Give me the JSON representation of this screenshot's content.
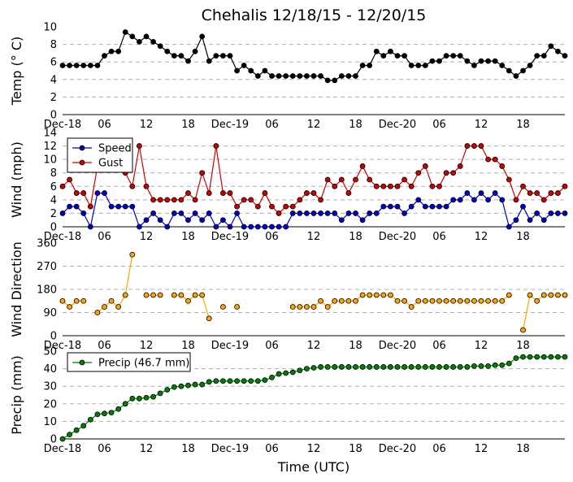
{
  "chart_data": {
    "title": "Chehalis 12/18/15 - 12/20/15",
    "xlabel": "Time (UTC)",
    "x_tick_labels": [
      "Dec-18",
      "06",
      "12",
      "18",
      "Dec-19",
      "06",
      "12",
      "18",
      "Dec-20",
      "06",
      "12",
      "18"
    ],
    "x_tick_hours": [
      0,
      6,
      12,
      18,
      24,
      30,
      36,
      42,
      48,
      54,
      60,
      66
    ],
    "x_range_hours": [
      0,
      72
    ],
    "sample_interval_hours": 1,
    "panels": [
      {
        "id": "temp",
        "type": "line",
        "ylabel": "Temp (° C)",
        "ylim": [
          0,
          10
        ],
        "yticks": [
          0,
          2,
          4,
          6,
          8,
          10
        ],
        "grid": true,
        "legend": null,
        "series": [
          {
            "name": "",
            "color": "#000000",
            "values": [
              5.6,
              5.6,
              5.6,
              5.6,
              5.6,
              5.6,
              6.7,
              7.2,
              7.2,
              9.4,
              8.9,
              8.3,
              8.9,
              8.3,
              7.8,
              7.2,
              6.7,
              6.7,
              6.1,
              7.2,
              8.9,
              6.1,
              6.7,
              6.7,
              6.7,
              5.0,
              5.6,
              5.0,
              4.4,
              5.0,
              4.4,
              4.4,
              4.4,
              4.4,
              4.4,
              4.4,
              4.4,
              4.4,
              3.9,
              3.9,
              4.4,
              4.4,
              4.4,
              5.6,
              5.6,
              7.2,
              6.7,
              7.2,
              6.7,
              6.7,
              5.6,
              5.6,
              5.6,
              6.1,
              6.1,
              6.7,
              6.7,
              6.7,
              6.1,
              5.6,
              6.1,
              6.1,
              6.1,
              5.6,
              5.0,
              4.4,
              5.0,
              5.6,
              6.7,
              6.7,
              7.8,
              7.2,
              6.7
            ]
          }
        ]
      },
      {
        "id": "wind",
        "type": "line",
        "ylabel": "Wind (mph)",
        "ylim": [
          0,
          14
        ],
        "yticks": [
          0,
          2,
          4,
          6,
          8,
          10,
          12,
          14
        ],
        "grid": true,
        "legend": "upper-left",
        "series": [
          {
            "name": "Speed",
            "color": "#0000cc",
            "values": [
              2,
              3,
              3,
              2,
              0,
              5,
              5,
              3,
              3,
              3,
              3,
              0,
              1,
              2,
              1,
              0,
              2,
              2,
              1,
              2,
              1,
              2,
              0,
              1,
              0,
              2,
              0,
              0,
              0,
              0,
              0,
              0,
              0,
              2,
              2,
              2,
              2,
              2,
              2,
              2,
              1,
              2,
              2,
              1,
              2,
              2,
              3,
              3,
              3,
              2,
              3,
              4,
              3,
              3,
              3,
              3,
              4,
              4,
              5,
              4,
              5,
              4,
              5,
              4,
              0,
              1,
              3,
              1,
              2,
              1,
              2,
              2,
              2
            ]
          },
          {
            "name": "Gust",
            "color": "#cc0000",
            "values": [
              6,
              7,
              5,
              5,
              3,
              9,
              9,
              9,
              9,
              8,
              6,
              12,
              6,
              4,
              4,
              4,
              4,
              4,
              5,
              4,
              8,
              5,
              12,
              5,
              5,
              3,
              4,
              4,
              3,
              5,
              3,
              2,
              3,
              3,
              4,
              5,
              5,
              4,
              7,
              6,
              7,
              5,
              7,
              9,
              7,
              6,
              6,
              6,
              6,
              7,
              6,
              8,
              9,
              6,
              6,
              8,
              8,
              9,
              12,
              12,
              12,
              10,
              10,
              9,
              7,
              4,
              6,
              5,
              5,
              4,
              5,
              5,
              6
            ]
          }
        ]
      },
      {
        "id": "direction",
        "type": "line",
        "ylabel": "Wind Direction",
        "ylim": [
          0,
          360
        ],
        "yticks": [
          0,
          90,
          180,
          270,
          360
        ],
        "grid": true,
        "legend": null,
        "series": [
          {
            "name": "",
            "color": "#ffa500",
            "values": [
              135,
              112,
              135,
              135,
              null,
              90,
              112,
              135,
              112,
              158,
              315,
              null,
              158,
              158,
              158,
              null,
              158,
              158,
              135,
              158,
              158,
              67,
              null,
              112,
              null,
              112,
              null,
              null,
              null,
              null,
              null,
              null,
              null,
              112,
              112,
              112,
              112,
              135,
              112,
              135,
              135,
              135,
              135,
              158,
              158,
              158,
              158,
              158,
              135,
              135,
              112,
              135,
              135,
              135,
              135,
              135,
              135,
              135,
              135,
              135,
              135,
              135,
              135,
              135,
              158,
              null,
              22,
              158,
              135,
              158,
              158,
              158,
              158
            ]
          }
        ]
      },
      {
        "id": "precip",
        "type": "line",
        "ylabel": "Precip (mm)",
        "ylim": [
          0,
          50
        ],
        "yticks": [
          0,
          10,
          20,
          30,
          40,
          50
        ],
        "grid": true,
        "legend": "upper-left",
        "series": [
          {
            "name": "Precip (46.7 mm)",
            "color": "#008000",
            "values": [
              0,
              2.5,
              5,
              7.5,
              11,
              14,
              14.5,
              15,
              17,
              20,
              23,
              23,
              23.5,
              24,
              26,
              28,
              29.5,
              30,
              30.5,
              31,
              31,
              32.5,
              33,
              33,
              33,
              33,
              33,
              33,
              33,
              33.5,
              35,
              37,
              37.5,
              38,
              39,
              40,
              40.5,
              41,
              41,
              41,
              41,
              41,
              41,
              41,
              41,
              41,
              41,
              41,
              41,
              41,
              41,
              41,
              41,
              41,
              41,
              41,
              41,
              41,
              41,
              41.5,
              41.5,
              41.5,
              42,
              42,
              43,
              46,
              46.7,
              46.7,
              46.7,
              46.7,
              46.7,
              46.7,
              46.7
            ]
          }
        ]
      }
    ]
  }
}
